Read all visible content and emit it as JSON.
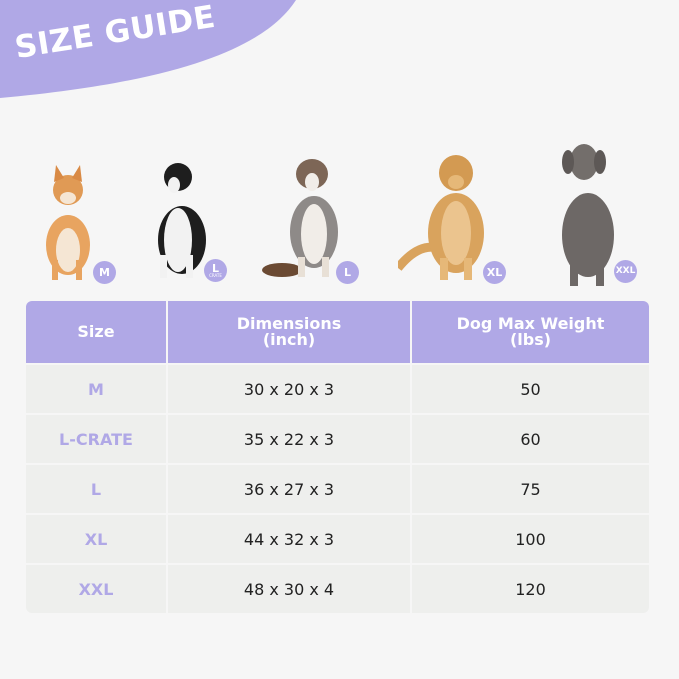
{
  "title": "SIZE GUIDE",
  "colors": {
    "accent": "#b0a8e6",
    "background": "#f6f6f6",
    "cell": "#eeefed"
  },
  "dogs": [
    {
      "breed_icon": "shiba-dog-image",
      "badge": "M",
      "badge_sub": ""
    },
    {
      "breed_icon": "border-collie-dog-image",
      "badge": "L",
      "badge_sub": "CRATE"
    },
    {
      "breed_icon": "australian-shepherd-dog-image",
      "badge": "L",
      "badge_sub": ""
    },
    {
      "breed_icon": "golden-retriever-dog-image",
      "badge": "XL",
      "badge_sub": ""
    },
    {
      "breed_icon": "weimaraner-dog-image",
      "badge": "XXL",
      "badge_sub": ""
    }
  ],
  "table": {
    "headers": [
      [
        "Size",
        ""
      ],
      [
        "Dimensions",
        "(inch)"
      ],
      [
        "Dog Max Weight",
        "(lbs)"
      ]
    ],
    "rows": [
      [
        "M",
        "30 x 20 x 3",
        "50"
      ],
      [
        "L-CRATE",
        "35 x 22 x 3",
        "60"
      ],
      [
        "L",
        "36 x 27 x 3",
        "75"
      ],
      [
        "XL",
        "44 x 32 x 3",
        "100"
      ],
      [
        "XXL",
        "48 x 30 x 4",
        "120"
      ]
    ]
  }
}
